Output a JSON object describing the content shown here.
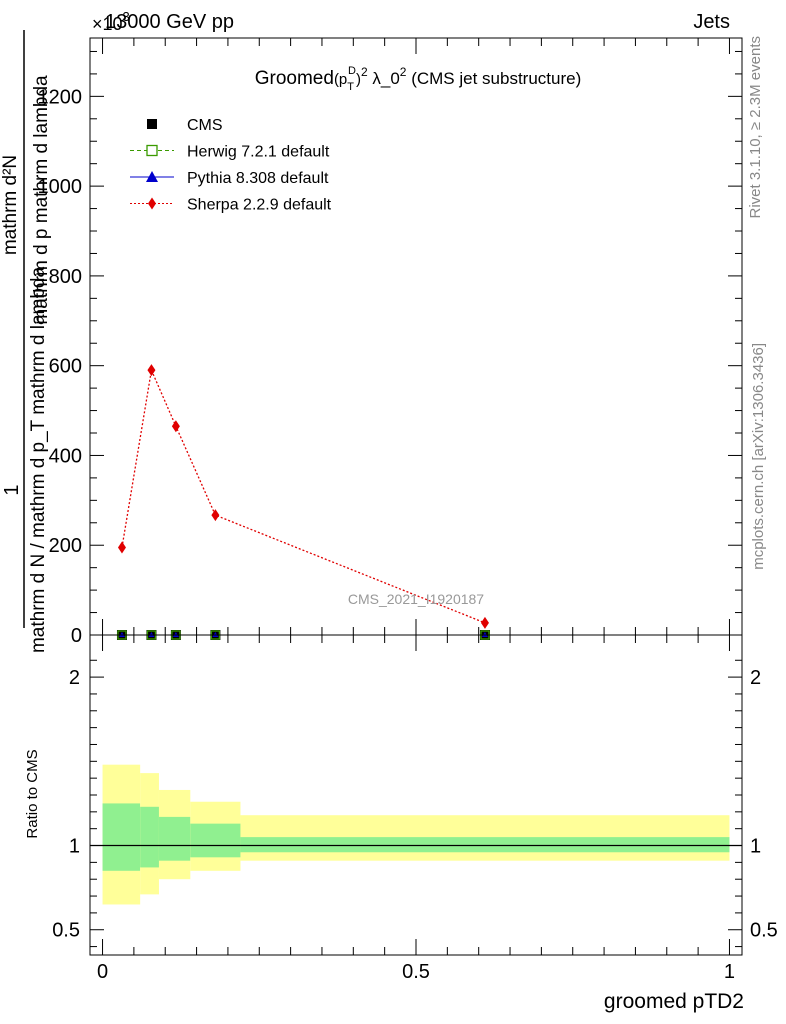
{
  "header": {
    "energy_label": "13000 GeV pp",
    "category_label": "Jets",
    "multiplier_label": "×10",
    "multiplier_exponent": "3"
  },
  "side_labels": {
    "rivet": "Rivet 3.1.10, ≥ 2.3M events",
    "mcplots": "mcplots.cern.ch [arXiv:1306.3436]"
  },
  "watermark": "CMS_2021_I1920187",
  "chart_data": [
    {
      "type": "line",
      "title_main": "Groomed",
      "title_pt": "(p",
      "title_sub": "T",
      "title_sup": "D",
      "title_close": ")",
      "title_sq": "2",
      "title_lambda": " λ_0",
      "title_rest": " (CMS jet substructure)",
      "ylabel_numerator": "1",
      "ylabel_denominator": "mathrm d N / mathrm d p_T mathrm d lambda",
      "ylabel_top": "mathrm d²N",
      "ylabel_mid": "mathrm d p  mathrm d lambda",
      "ylim": [
        0,
        1330
      ],
      "xlim": [
        -0.02,
        1.02
      ],
      "y_ticks": [
        0,
        200,
        400,
        600,
        800,
        1000,
        1200
      ],
      "y_tick_labels": [
        "0",
        "200",
        "400",
        "600",
        "800",
        "1000",
        "1200"
      ],
      "legend_position": "top-left",
      "x": [
        0.031,
        0.078,
        0.117,
        0.18,
        0.61
      ],
      "series": [
        {
          "name": "CMS",
          "values": [
            0,
            0,
            0,
            0,
            0
          ],
          "color": "#000000"
        },
        {
          "name": "Herwig 7.2.1 default",
          "values": [
            0,
            0,
            0,
            0,
            0
          ],
          "color": "#3a9a00"
        },
        {
          "name": "Pythia 8.308 default",
          "values": [
            0,
            0,
            0,
            0,
            0
          ],
          "color": "#0000cc"
        },
        {
          "name": "Sherpa 2.2.9 default",
          "values": [
            195,
            590,
            465,
            267,
            27
          ],
          "color": "#e00000"
        }
      ]
    },
    {
      "type": "area",
      "ylabel": "Ratio to CMS",
      "xlabel": "groomed pTD2",
      "xlim": [
        -0.02,
        1.02
      ],
      "ylim": [
        0.35,
        2.25
      ],
      "y_ticks": [
        0.5,
        1,
        2
      ],
      "y_tick_labels": [
        "0.5",
        "1",
        "2"
      ],
      "x_ticks": [
        0,
        0.5,
        1
      ],
      "x_tick_labels": [
        "0",
        "0.5",
        "1"
      ],
      "bin_edges": [
        0,
        0.06,
        0.09,
        0.14,
        0.22,
        1.0
      ],
      "inner_band": {
        "low": [
          0.85,
          0.87,
          0.91,
          0.93,
          0.96
        ],
        "high": [
          1.25,
          1.23,
          1.17,
          1.13,
          1.05
        ],
        "color": "#90f090"
      },
      "outer_band": {
        "low": [
          0.65,
          0.71,
          0.8,
          0.85,
          0.91
        ],
        "high": [
          1.48,
          1.43,
          1.33,
          1.26,
          1.18
        ],
        "color": "#ffff99"
      },
      "reference": 1
    }
  ]
}
